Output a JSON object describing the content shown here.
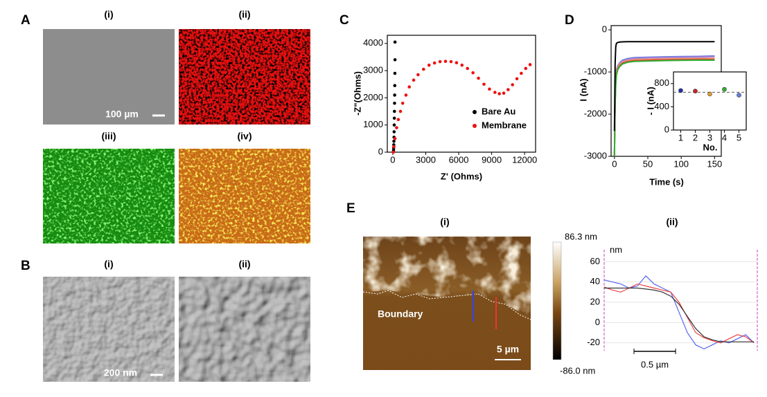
{
  "figure": {
    "A": {
      "label": "A",
      "subpanels": [
        "(i)",
        "(ii)",
        "(iii)",
        "(iv)"
      ],
      "scale_bar": "100 µm"
    },
    "B": {
      "label": "B",
      "subpanels": [
        "(i)",
        "(ii)"
      ],
      "scale_bar": "200 nm"
    },
    "E": {
      "label": "E",
      "subpanels": [
        "(i)",
        "(ii)"
      ],
      "boundary": "Boundary",
      "scale_bar": "5 µm",
      "colorbar": {
        "max": "86.3 nm",
        "min": "-86.0 nm"
      }
    }
  },
  "chart_data": [
    {
      "type": "scatter",
      "panel": "C",
      "x_label": "Z' (Ohms)",
      "y_label": "-Z\"(Ohms)",
      "xlim": [
        -500,
        13000
      ],
      "xticks": [
        0,
        3000,
        6000,
        9000,
        12000
      ],
      "ylim": [
        0,
        4300
      ],
      "yticks": [
        0,
        1000,
        2000,
        3000,
        4000
      ],
      "legend": "lower right",
      "series": [
        {
          "name": "Bare Au",
          "color": "#000000",
          "x": [
            60,
            70,
            80,
            90,
            100,
            110,
            120,
            130,
            140,
            150,
            160,
            170,
            180,
            190,
            200,
            200
          ],
          "values": [
            20,
            80,
            160,
            270,
            400,
            550,
            750,
            1000,
            1250,
            1500,
            1800,
            2100,
            2450,
            2900,
            3400,
            4050
          ]
        },
        {
          "name": "Membrane",
          "color": "#ee1111",
          "x": [
            50,
            100,
            200,
            350,
            500,
            700,
            900,
            1200,
            1500,
            1900,
            2300,
            2800,
            3300,
            3800,
            4300,
            4800,
            5300,
            5800,
            6300,
            6800,
            7300,
            7800,
            8300,
            8800,
            9300,
            9700,
            10100,
            10500,
            10900,
            11300,
            11700,
            12100,
            12500
          ],
          "values": [
            0,
            200,
            500,
            900,
            1200,
            1500,
            1800,
            2100,
            2400,
            2650,
            2850,
            3050,
            3200,
            3280,
            3330,
            3340,
            3330,
            3290,
            3200,
            3080,
            2920,
            2720,
            2500,
            2320,
            2200,
            2150,
            2170,
            2300,
            2480,
            2700,
            2900,
            3080,
            3220
          ]
        }
      ]
    },
    {
      "type": "line",
      "panel": "D",
      "x_label": "Time (s)",
      "y_label": "I (nA)",
      "xlim": [
        -5,
        160
      ],
      "xticks": [
        0,
        50,
        100,
        150
      ],
      "ylim": [
        -3000,
        100
      ],
      "yticks": [
        -3000,
        -2000,
        -1000,
        0
      ],
      "x": [
        0,
        1,
        2,
        3,
        5,
        8,
        12,
        20,
        30,
        50,
        75,
        100,
        125,
        150
      ],
      "series": [
        {
          "color": "#6a7de0",
          "values": [
            -3000,
            -1600,
            -1100,
            -950,
            -850,
            -780,
            -720,
            -680,
            -660,
            -650,
            -640,
            -635,
            -630,
            -620
          ]
        },
        {
          "color": "#b080d0",
          "values": [
            -3000,
            -1650,
            -1150,
            -980,
            -870,
            -800,
            -740,
            -700,
            -680,
            -670,
            -660,
            -655,
            -650,
            -640
          ]
        },
        {
          "color": "#f0a060",
          "values": [
            -3000,
            -1700,
            -1200,
            -1020,
            -900,
            -830,
            -770,
            -730,
            -710,
            -700,
            -690,
            -685,
            -680,
            -680
          ]
        },
        {
          "color": "#e04040",
          "values": [
            -3000,
            -1750,
            -1250,
            -1050,
            -930,
            -850,
            -790,
            -750,
            -730,
            -720,
            -710,
            -705,
            -700,
            -700
          ]
        },
        {
          "color": "#30b030",
          "values": [
            -3000,
            -1800,
            -1300,
            -1080,
            -950,
            -870,
            -810,
            -770,
            -750,
            -740,
            -730,
            -725,
            -720,
            -720
          ]
        },
        {
          "color": "#000000",
          "values": [
            -2400,
            -800,
            -400,
            -320,
            -300,
            -290,
            -285,
            -280,
            -280,
            -280,
            -280,
            -280,
            -280,
            -280
          ]
        }
      ]
    },
    {
      "type": "scatter",
      "x_label": "No.",
      "y_label": "- I (nA)",
      "xlim": [
        0.5,
        5.5
      ],
      "xticks": [
        1,
        2,
        3,
        4,
        5
      ],
      "ylim": [
        0,
        1000
      ],
      "yticks": [
        0,
        400,
        800
      ],
      "reference_line": 650,
      "x": [
        1,
        2,
        3,
        4,
        5
      ],
      "values": [
        680,
        670,
        620,
        700,
        600
      ],
      "colors": [
        "#2233aa",
        "#cc2222",
        "#e0a030",
        "#30b030",
        "#6a7de0"
      ]
    },
    {
      "type": "line",
      "y_label": "nm",
      "xlim": [
        0,
        1.84
      ],
      "ylim": [
        -25,
        65
      ],
      "yticks": [
        -20,
        0,
        20,
        40,
        60
      ],
      "grid": true,
      "scale_bar": {
        "value": 0.5,
        "label": "0.5 µm"
      },
      "x": [
        0,
        0.1,
        0.2,
        0.3,
        0.4,
        0.5,
        0.6,
        0.7,
        0.8,
        0.9,
        1.0,
        1.1,
        1.2,
        1.3,
        1.4,
        1.5,
        1.6,
        1.7,
        1.8
      ],
      "series": [
        {
          "color": "#5566ee",
          "values": [
            42,
            40,
            38,
            34,
            36,
            46,
            38,
            34,
            30,
            10,
            -10,
            -22,
            -26,
            -22,
            -18,
            -20,
            -16,
            -12,
            -20
          ]
        },
        {
          "color": "#ee4444",
          "values": [
            35,
            32,
            30,
            34,
            38,
            36,
            34,
            32,
            30,
            20,
            5,
            -10,
            -15,
            -18,
            -20,
            -16,
            -12,
            -14,
            -20
          ]
        },
        {
          "color": "#333333",
          "values": [
            34,
            34,
            34,
            34,
            34,
            33,
            32,
            30,
            26,
            18,
            6,
            -6,
            -14,
            -17,
            -19,
            -19,
            -19,
            -19,
            -19
          ]
        }
      ]
    }
  ]
}
